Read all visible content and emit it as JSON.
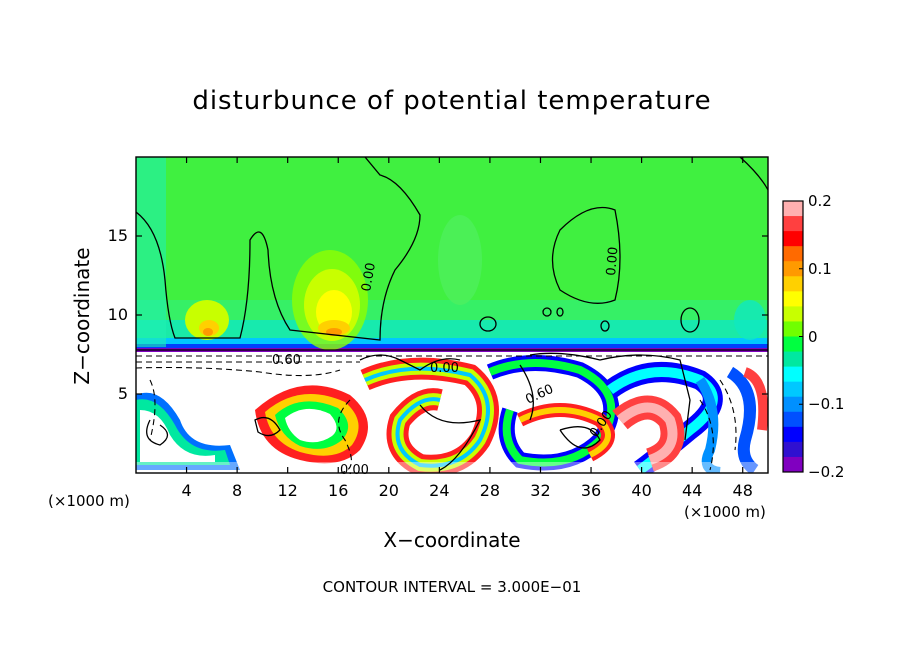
{
  "chart_data": {
    "type": "heatmap",
    "title": "disturbunce of potential temperature",
    "xlabel": "X−coordinate",
    "ylabel": "Z−coordinate",
    "x_unit": "(×1000 m)",
    "y_unit": "(×1000 m)",
    "xlim": [
      0,
      50
    ],
    "ylim": [
      0,
      20
    ],
    "x_ticks": [
      4,
      8,
      12,
      16,
      20,
      24,
      28,
      32,
      36,
      40,
      44,
      48
    ],
    "y_ticks": [
      5,
      10,
      15
    ],
    "colorbar": {
      "range": [
        -0.2,
        0.2
      ],
      "ticks": [
        "0.2",
        "0.1",
        "0",
        "−0.1",
        "−0.2"
      ],
      "colors": [
        "#ffb0b0",
        "#ff4040",
        "#ff0000",
        "#ff6a00",
        "#ff9a00",
        "#ffd000",
        "#ffff00",
        "#c8ff00",
        "#70ff00",
        "#00ff40",
        "#00e8a0",
        "#00ffff",
        "#00c8ff",
        "#0090ff",
        "#0050ff",
        "#0000ff",
        "#3010d0",
        "#8000c0"
      ]
    },
    "contour_labels": [
      "0.00",
      "0.00",
      "0.00",
      "0.00",
      "0.00",
      "0.60",
      "0.60",
      "0.00"
    ],
    "annotation": "CONTOUR INTERVAL = 3.000E−01"
  }
}
